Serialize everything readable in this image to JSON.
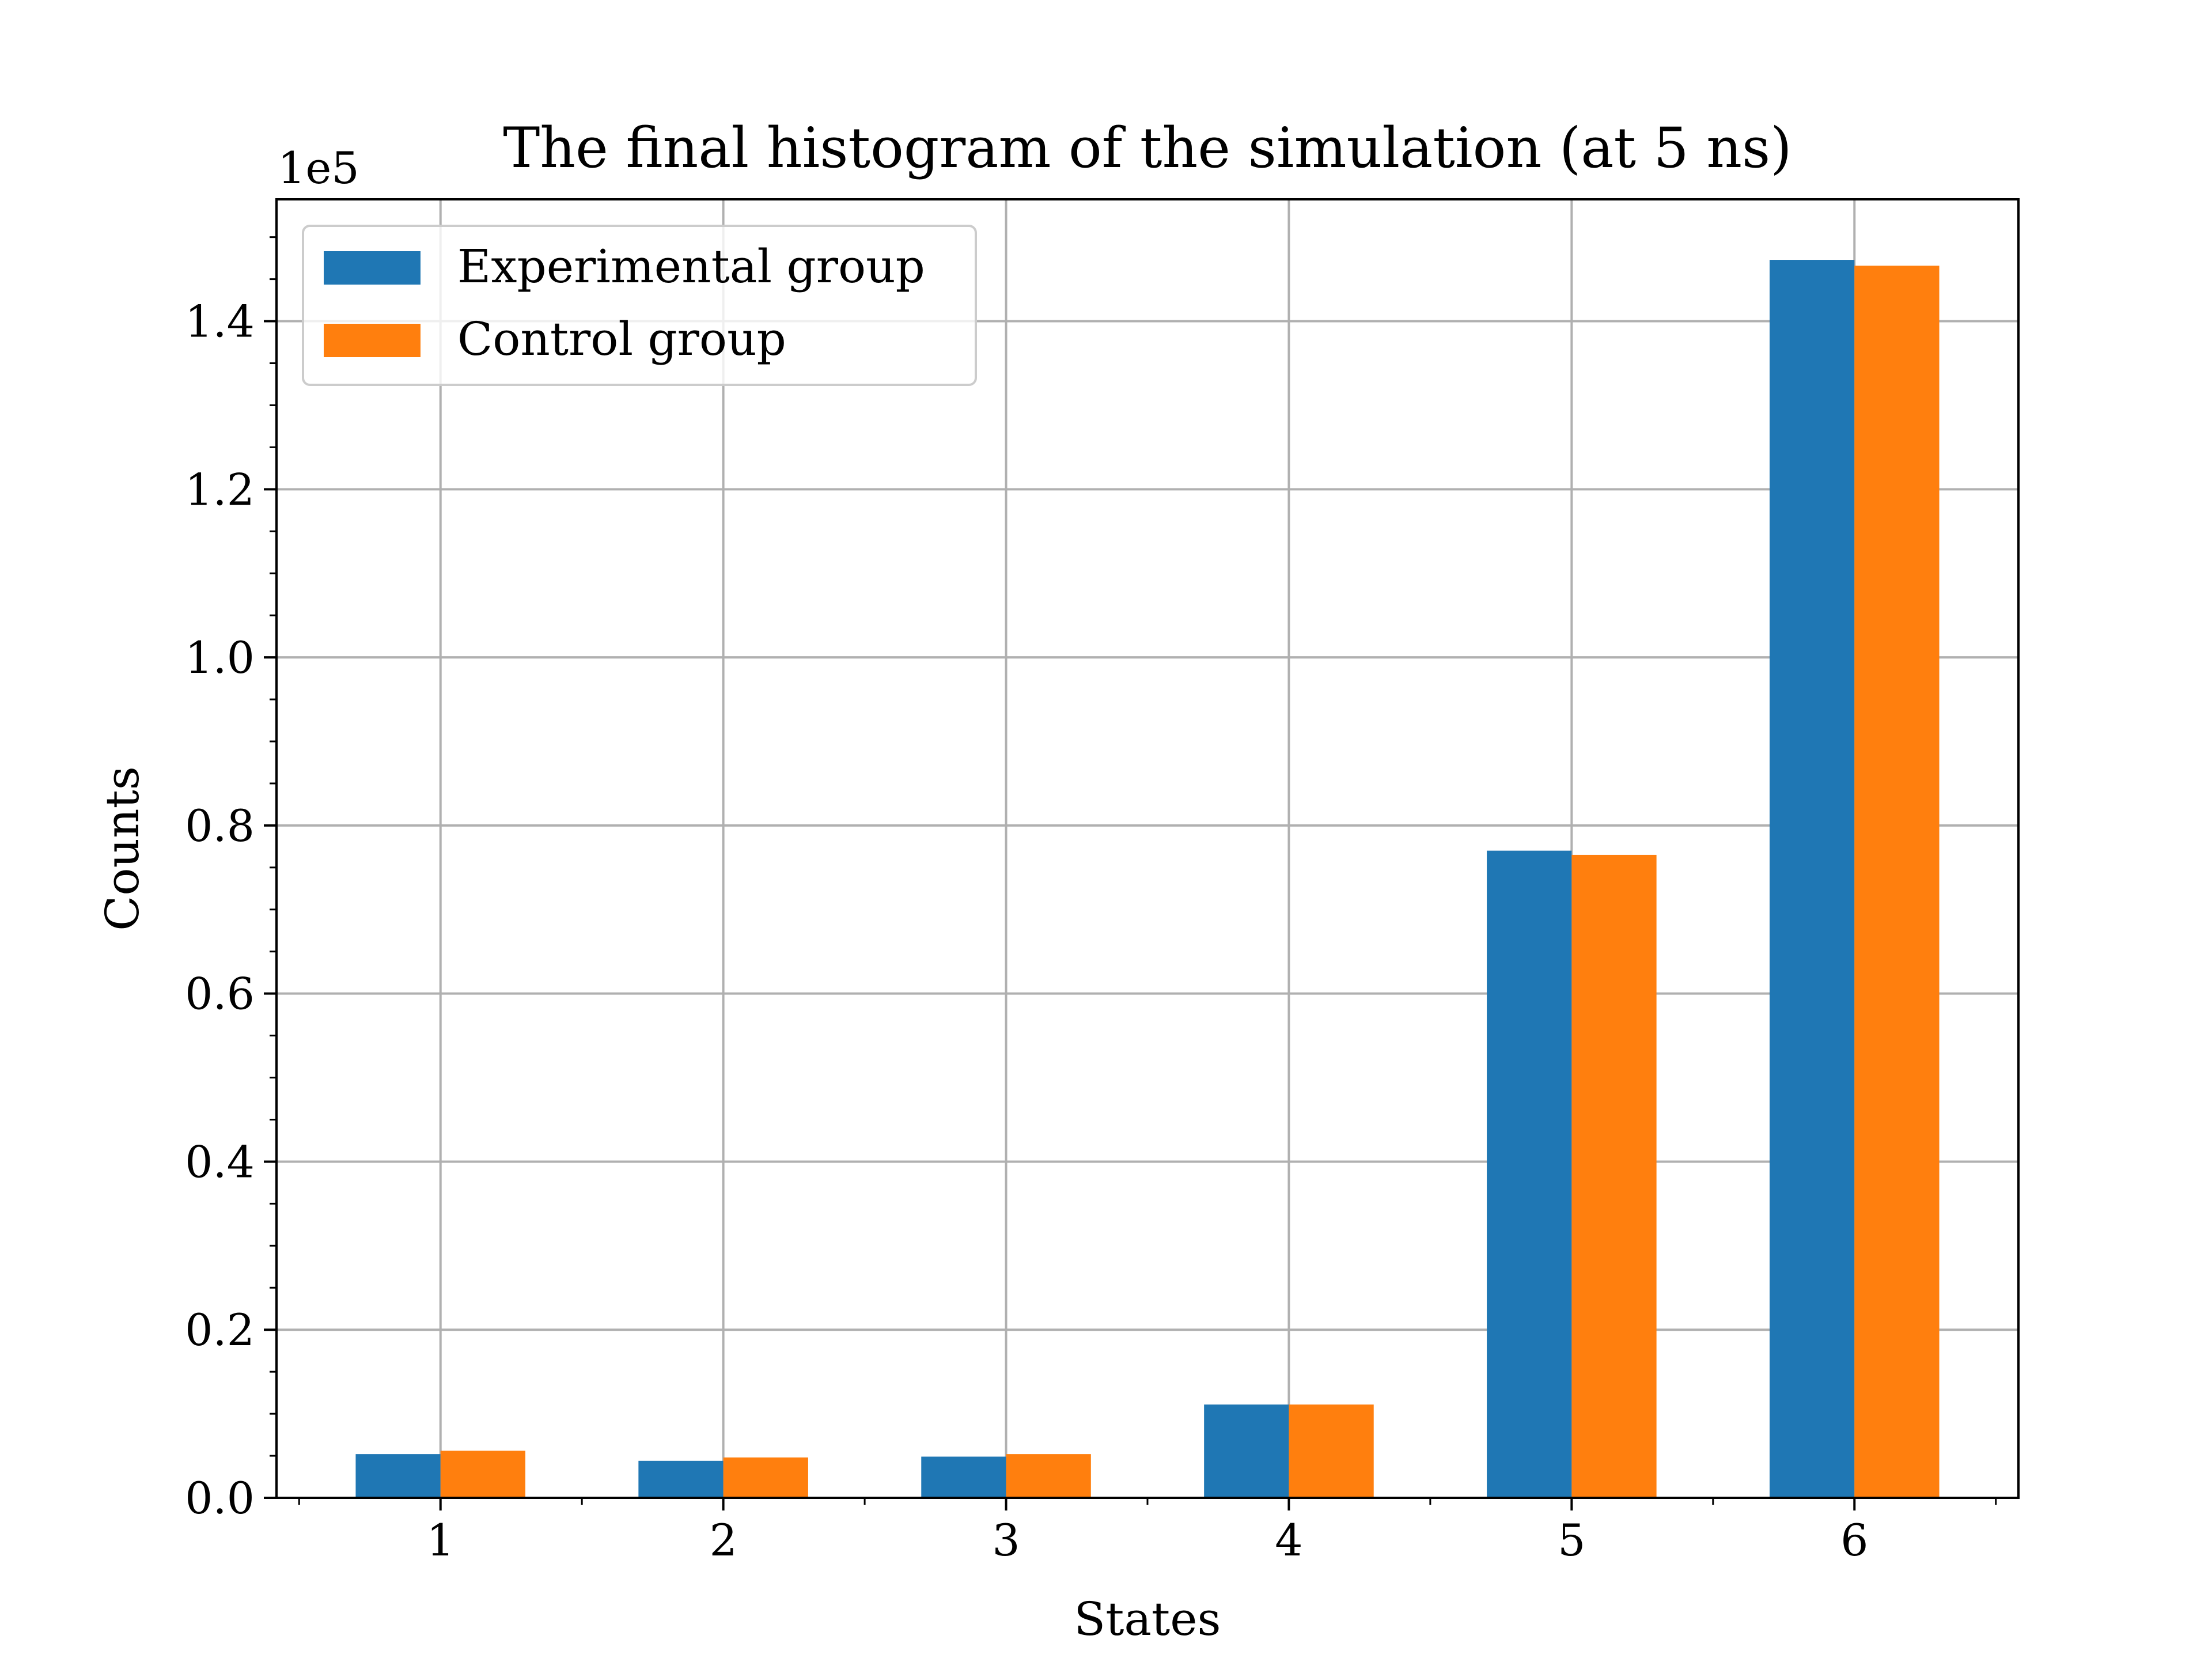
{
  "chart_data": {
    "type": "bar",
    "title": "The final histogram of the simulation (at 5 ns)",
    "xlabel": "States",
    "ylabel": "Counts",
    "y_offset_label": "1e5",
    "categories": [
      "1",
      "2",
      "3",
      "4",
      "5",
      "6"
    ],
    "series": [
      {
        "name": "Experimental group",
        "color": "#1f77b4",
        "values": [
          5200,
          4400,
          4900,
          11100,
          77000,
          147300
        ]
      },
      {
        "name": "Control group",
        "color": "#ff7f0e",
        "values": [
          5600,
          4800,
          5200,
          11100,
          76500,
          146600
        ]
      }
    ],
    "y_ticks": [
      0,
      20000,
      40000,
      60000,
      80000,
      100000,
      120000,
      140000
    ],
    "y_tick_labels": [
      "0.0",
      "0.2",
      "0.4",
      "0.6",
      "0.8",
      "1.0",
      "1.2",
      "1.4"
    ],
    "xlim": [
      0.42,
      6.58
    ],
    "ylim": [
      0,
      154500
    ],
    "grid": true,
    "legend_position": "top-left"
  }
}
